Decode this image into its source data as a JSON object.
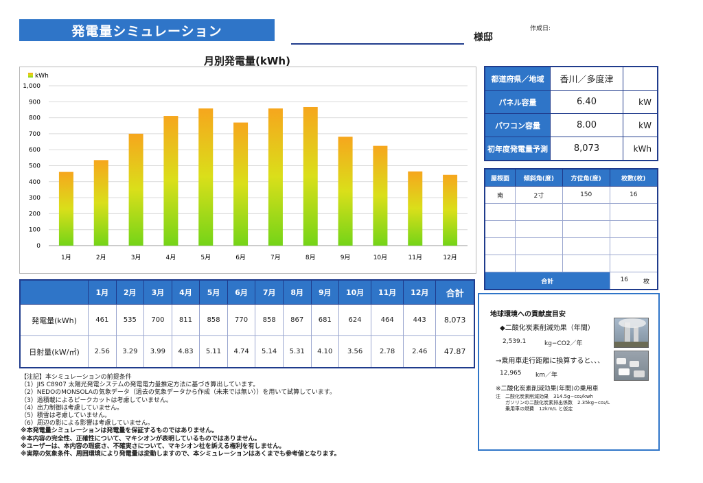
{
  "header": {
    "title": "発電量シミュレーション",
    "name_suffix": "様邸",
    "made_label": "作成日:"
  },
  "chart_data": {
    "type": "bar",
    "title": "月別発電量(kWh)",
    "legend": "kWh",
    "categories": [
      "1月",
      "2月",
      "3月",
      "4月",
      "5月",
      "6月",
      "7月",
      "8月",
      "9月",
      "10月",
      "11月",
      "12月"
    ],
    "values": [
      461,
      535,
      700,
      811,
      858,
      770,
      858,
      867,
      681,
      624,
      464,
      443
    ],
    "ylim": [
      0,
      1000
    ],
    "yticks": [
      "0",
      "100",
      "200",
      "300",
      "400",
      "500",
      "600",
      "700",
      "800",
      "900",
      "1,000"
    ],
    "grid": true,
    "colors": {
      "top": "#f6a61d",
      "bottom": "#74d418"
    }
  },
  "info": {
    "rows": [
      {
        "label": "都道府県／地域",
        "value": "香川／多度津",
        "unit": ""
      },
      {
        "label": "パネル容量",
        "value": "6.40",
        "unit": "kW"
      },
      {
        "label": "パワコン容量",
        "value": "8.00",
        "unit": "kW"
      },
      {
        "label": "初年度発電量予測",
        "value": "8,073",
        "unit": "kWh"
      }
    ]
  },
  "roof": {
    "headers": [
      "屋根面",
      "傾斜角(度)",
      "方位角(度)",
      "枚数(枚)"
    ],
    "rows": [
      [
        "南",
        "2寸",
        "150",
        "16"
      ],
      [
        "",
        "",
        "",
        ""
      ],
      [
        "",
        "",
        "",
        ""
      ],
      [
        "",
        "",
        "",
        ""
      ],
      [
        "",
        "",
        "",
        ""
      ]
    ],
    "total_label": "合計",
    "total_value": "16",
    "total_unit": "枚"
  },
  "monthly": {
    "months": [
      "1月",
      "2月",
      "3月",
      "4月",
      "5月",
      "6月",
      "7月",
      "8月",
      "9月",
      "10月",
      "11月",
      "12月"
    ],
    "total_header": "合計",
    "rows": [
      {
        "label": "発電量(kWh)",
        "values": [
          "461",
          "535",
          "700",
          "811",
          "858",
          "770",
          "858",
          "867",
          "681",
          "624",
          "464",
          "443"
        ],
        "total": "8,073"
      },
      {
        "label": "日射量(kW/㎡)",
        "values": [
          "2.56",
          "3.29",
          "3.99",
          "4.83",
          "5.11",
          "4.74",
          "5.14",
          "5.31",
          "4.10",
          "3.56",
          "2.78",
          "2.46"
        ],
        "total": "47.87"
      }
    ]
  },
  "notes": {
    "lines": [
      "【注記】本シミュレーションの前提条件",
      "（1）JIS C8907 太陽光発電システムの発電電力量推定方法に基づき算出しています。",
      "（2）NEDOのMONSOLAの気象データ（過去の気象データから作成（未来では無い））を用いて試算しています。",
      "（3）過積載によるピークカットは考慮していません。",
      "（4）出力制御は考慮していません。",
      "（5）積雪は考慮していません。",
      "（6）周辺の影による影響は考慮していません。"
    ],
    "bold_lines": [
      "※本発電量シミュレーションは発電量を保証するものではありません。",
      "※本内容の完全性、正確性について、マキシオンが表明しているものではありません。",
      "※ユーザーは、本内容の瑕疵さ、不確実さについて、マキシオン社を訴える権利を有しません。",
      "※実際の気象条件、周囲環境により発電量は変動しますので、本シミュレーションはあくまでも参考値となります。"
    ]
  },
  "contrib": {
    "title": "地球環境への貢献度目安",
    "co2_heading": "◆二酸化炭素削減効果（年間）",
    "co2_value": "2,539.1",
    "co2_unit": "kg−CO2／年",
    "car_heading": "→乗用車走行距離に換算すると、、、",
    "car_value": "12,965",
    "car_unit": "km／年",
    "footnote_title": "※二酸化炭素削減効果(年間)の乗用車",
    "footnote_1": "注　二酸化炭素削減効果　314.5g−co₂/kwh",
    "footnote_2": "ガソリンの二酸化炭素排出係数　2.35kg−co₂/L",
    "footnote_3": "乗用車の燃費　12km/L と仮定"
  }
}
